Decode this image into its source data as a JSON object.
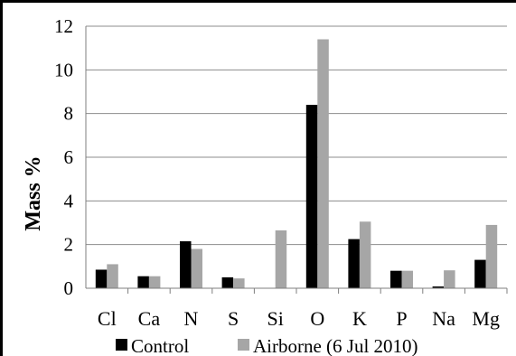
{
  "chart_data": {
    "type": "bar",
    "title": "",
    "xlabel": "",
    "ylabel": "Mass %",
    "ylim": [
      0,
      12
    ],
    "yticks": [
      0,
      2,
      4,
      6,
      8,
      10,
      12
    ],
    "grid": true,
    "legend_position": "bottom",
    "categories": [
      "Cl",
      "Ca",
      "N",
      "S",
      "Si",
      "O",
      "K",
      "P",
      "Na",
      "Mg"
    ],
    "series": [
      {
        "name": "Control",
        "color": "#000000",
        "values": [
          0.85,
          0.55,
          2.15,
          0.5,
          0.0,
          8.4,
          2.25,
          0.8,
          0.08,
          1.3
        ]
      },
      {
        "name": "Airborne (6 Jul 2010)",
        "color": "#a6a6a6",
        "values": [
          1.1,
          0.55,
          1.8,
          0.45,
          2.65,
          11.4,
          3.05,
          0.8,
          0.82,
          2.9
        ]
      }
    ]
  }
}
